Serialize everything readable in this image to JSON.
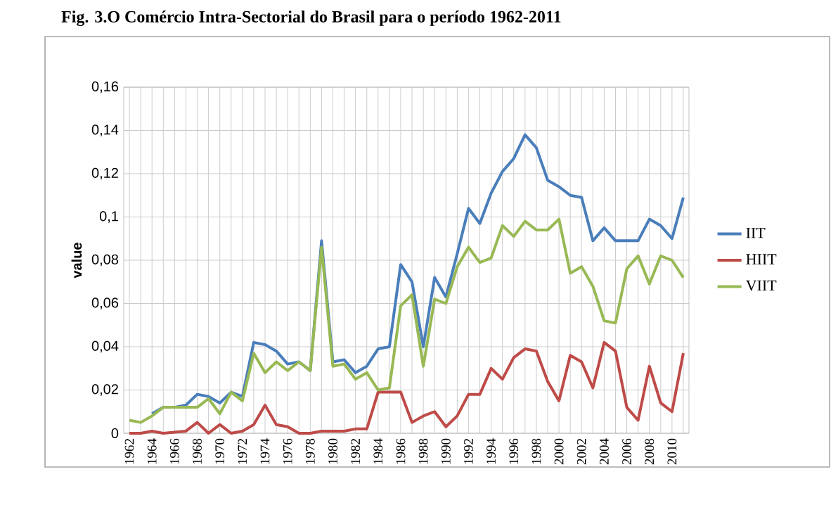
{
  "chart_data": {
    "type": "line",
    "title": "Fig. 3.O Comércio Intra-Sectorial do Brasil para o período 1962-2011",
    "ylabel": "value",
    "categories": [
      "1962",
      null,
      "1964",
      null,
      "1966",
      null,
      "1968",
      null,
      "1970",
      null,
      "1972",
      null,
      "1974",
      null,
      "1976",
      null,
      "1978",
      null,
      "1980",
      null,
      "1982",
      null,
      "1984",
      null,
      "1986",
      null,
      "1988",
      null,
      "1990",
      null,
      "1992",
      null,
      "1994",
      null,
      "1996",
      null,
      "1998",
      null,
      "2000",
      null,
      "2002",
      null,
      "2004",
      null,
      "2006",
      null,
      "2008",
      null,
      "2010",
      null
    ],
    "series": [
      {
        "name": "IIT",
        "color": "#4a7ebb",
        "values": [
          null,
          null,
          0.009,
          0.012,
          0.012,
          0.013,
          0.018,
          0.017,
          0.014,
          0.019,
          0.017,
          0.042,
          0.041,
          0.038,
          0.032,
          0.033,
          0.029,
          0.089,
          0.033,
          0.034,
          0.028,
          0.031,
          0.039,
          0.04,
          0.078,
          0.07,
          0.04,
          0.072,
          0.063,
          0.083,
          0.104,
          0.097,
          0.111,
          0.121,
          0.127,
          0.138,
          0.132,
          0.117,
          0.114,
          0.11,
          0.109,
          0.089,
          0.095,
          0.089,
          0.089,
          0.089,
          0.099,
          0.096,
          0.09,
          0.109
        ]
      },
      {
        "name": "HIIT",
        "color": "#be4b48",
        "values": [
          0.0,
          0.0,
          0.001,
          0.0,
          0.0005,
          0.001,
          0.005,
          0.0,
          0.004,
          0.0,
          0.001,
          0.004,
          0.013,
          0.004,
          0.003,
          0.0,
          0.0,
          0.001,
          0.001,
          0.001,
          0.002,
          0.002,
          0.019,
          0.019,
          0.019,
          0.005,
          0.008,
          0.01,
          0.003,
          0.008,
          0.018,
          0.018,
          0.03,
          0.025,
          0.035,
          0.039,
          0.038,
          0.024,
          0.015,
          0.036,
          0.033,
          0.021,
          0.042,
          0.038,
          0.012,
          0.006,
          0.031,
          0.014,
          0.01,
          0.037
        ]
      },
      {
        "name": "VIIT",
        "color": "#98b954",
        "values": [
          0.006,
          0.005,
          0.008,
          0.012,
          0.012,
          0.012,
          0.012,
          0.016,
          0.009,
          0.019,
          0.015,
          0.037,
          0.028,
          0.033,
          0.029,
          0.033,
          0.029,
          0.086,
          0.031,
          0.032,
          0.025,
          0.028,
          0.02,
          0.021,
          0.059,
          0.064,
          0.031,
          0.062,
          0.06,
          0.077,
          0.086,
          0.079,
          0.081,
          0.096,
          0.091,
          0.098,
          0.094,
          0.094,
          0.099,
          0.074,
          0.077,
          0.068,
          0.052,
          0.051,
          0.076,
          0.082,
          0.069,
          0.082,
          0.08,
          0.072
        ]
      }
    ],
    "ylim": [
      0,
      0.16
    ],
    "yticks": [
      {
        "value": 0,
        "label": "0"
      },
      {
        "value": 0.02,
        "label": "0,02"
      },
      {
        "value": 0.04,
        "label": "0,04"
      },
      {
        "value": 0.06,
        "label": "0,06"
      },
      {
        "value": 0.08,
        "label": "0,08"
      },
      {
        "value": 0.1,
        "label": "0,1"
      },
      {
        "value": 0.12,
        "label": "0,12"
      },
      {
        "value": 0.14,
        "label": "0,14"
      },
      {
        "value": 0.16,
        "label": "0,16"
      }
    ],
    "grid": true,
    "legend": "right",
    "marker": "none",
    "line_style": "solid"
  }
}
